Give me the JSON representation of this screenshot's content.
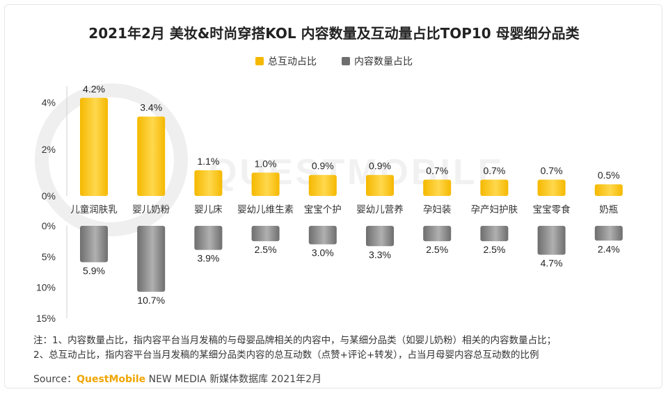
{
  "chart_data": {
    "type": "bar",
    "title": "2021年2月 美妆&时尚穿搭KOL 内容数量及互动量占比TOP10 母婴细分品类",
    "categories": [
      "儿童润肤乳",
      "婴儿奶粉",
      "婴儿床",
      "婴幼儿维生素",
      "宝宝个护",
      "婴幼儿营养",
      "孕妇装",
      "孕产妇护肤",
      "宝宝零食",
      "奶瓶"
    ],
    "series": [
      {
        "name": "总互动占比",
        "values": [
          4.2,
          3.4,
          1.1,
          1.0,
          0.9,
          0.9,
          0.7,
          0.7,
          0.7,
          0.5
        ],
        "labels": [
          "4.2%",
          "3.4%",
          "1.1%",
          "1.0%",
          "0.9%",
          "0.9%",
          "0.7%",
          "0.7%",
          "0.7%",
          "0.5%"
        ]
      },
      {
        "name": "内容数量占比",
        "values": [
          5.9,
          10.7,
          3.9,
          2.5,
          3.0,
          3.3,
          2.5,
          2.5,
          4.7,
          2.4
        ],
        "labels": [
          "5.9%",
          "10.7%",
          "3.9%",
          "2.5%",
          "3.0%",
          "3.3%",
          "2.5%",
          "2.5%",
          "4.7%",
          "2.4%"
        ]
      }
    ],
    "top_axis": {
      "ylim": [
        0,
        4.7
      ],
      "ticks": [
        0,
        2,
        4
      ],
      "tick_labels": [
        "0%",
        "2%",
        "4%"
      ]
    },
    "bottom_axis": {
      "ylim": [
        0,
        15
      ],
      "ticks": [
        0,
        5,
        10,
        15
      ],
      "tick_labels": [
        "0%",
        "5%",
        "10%",
        "15%"
      ]
    },
    "legend_position": "top-center",
    "grid": false
  },
  "colors": {
    "interaction": "#f5b800",
    "interaction_light": "#ffd84d",
    "content": "#6e6e6e",
    "content_light": "#b0b0b0"
  },
  "notes": {
    "line1": "注：1、内容数量占比，指内容平台当月发稿的与母婴品牌相关的内容中，与某细分品类（如婴儿奶粉）相关的内容数量占比；",
    "line2": "2、总互动占比，指内容平台当月发稿的某细分品类内容的总互动数（点赞+评论+转发），占当月母婴内容总互动数的比例"
  },
  "source": {
    "label": "Source：",
    "brand": "QuestMobile",
    "rest": " NEW MEDIA 新媒体数据库 2021年2月"
  },
  "watermark": "QUESTMOBILE"
}
